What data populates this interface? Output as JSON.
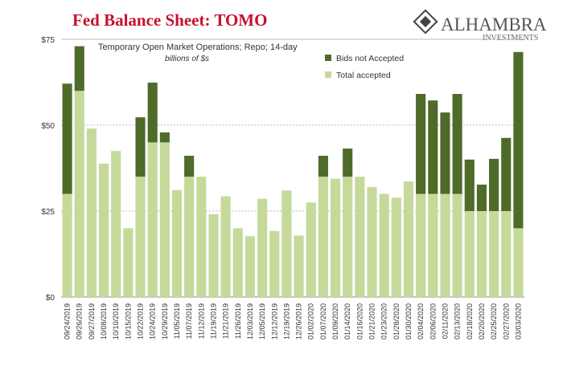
{
  "chart_data": {
    "type": "stacked_bar",
    "title": "Fed Balance Sheet: TOMO",
    "logo": {
      "name": "ALHAMBRA",
      "tagline": "INVESTMENTS"
    },
    "subtitle": "Temporary Open Market Operations; Repo; 14-day",
    "unit_note": "billions of $s",
    "categories": [
      "09/24/2019",
      "09/26/2019",
      "09/27/2019",
      "10/08/2019",
      "10/10/2019",
      "10/15/2019",
      "10/22/2019",
      "10/24/2019",
      "10/29/2019",
      "11/05/2019",
      "11/07/2019",
      "11/12/2019",
      "11/19/2019",
      "11/21/2019",
      "11/26/2019",
      "12/03/2019",
      "12/05/2019",
      "12/12/2019",
      "12/19/2019",
      "12/26/2019",
      "01/02/2020",
      "01/07/2020",
      "01/09/2020",
      "01/14/2020",
      "01/16/2020",
      "01/21/2020",
      "01/23/2020",
      "01/28/2020",
      "01/30/2020",
      "02/04/2020",
      "02/06/2020",
      "02/11/2020",
      "02/13/2020",
      "02/18/2020",
      "02/20/2020",
      "02/25/2020",
      "02/27/2020",
      "03/03/2020"
    ],
    "series": [
      {
        "name": "Bids not Accepted",
        "color": "#4e6b2a",
        "values": [
          32.1,
          13,
          null,
          null,
          null,
          null,
          17.3,
          17.4,
          2.9,
          null,
          6.1,
          null,
          null,
          null,
          null,
          null,
          null,
          null,
          null,
          null,
          null,
          6.1,
          null,
          8.2,
          null,
          null,
          null,
          null,
          null,
          29.1,
          27.2,
          23.7,
          29.1,
          15,
          7.7,
          15.2,
          21.3,
          51.3
        ]
      },
      {
        "name": "Total accepted",
        "color": "#c5d99b",
        "values": [
          30,
          60,
          49,
          38.8,
          42.5,
          20,
          35,
          45,
          45,
          31.1,
          35,
          35,
          24.1,
          29.3,
          20,
          17.7,
          28.6,
          19.2,
          31,
          17.9,
          27.5,
          35,
          34.4,
          35,
          35,
          32,
          30,
          28.9,
          33.6,
          30,
          30,
          30,
          30,
          25,
          25,
          25,
          25,
          20
        ]
      }
    ],
    "ylim": [
      0,
      75
    ],
    "yticks": [
      {
        "value": 0,
        "label": "$0"
      },
      {
        "value": 25,
        "label": "$25"
      },
      {
        "value": 50,
        "label": "$50"
      },
      {
        "value": 75,
        "label": "$75"
      }
    ],
    "grid": true
  }
}
